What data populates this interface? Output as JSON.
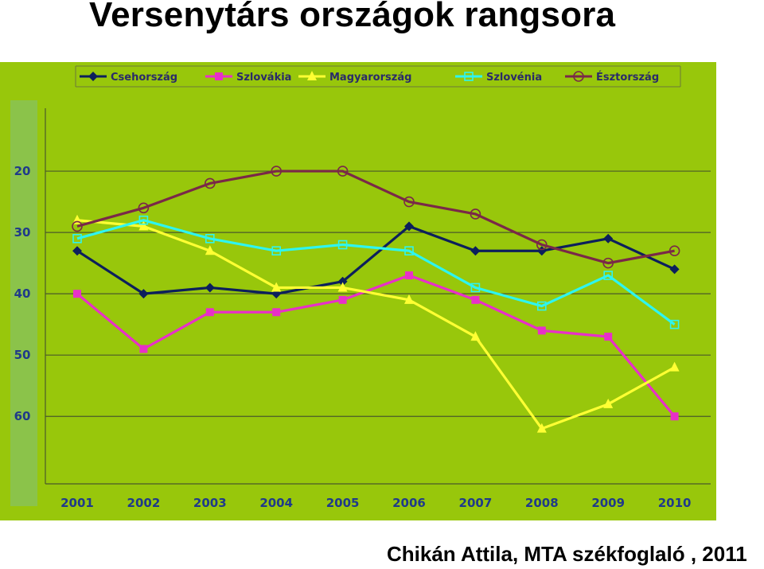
{
  "page": {
    "title": "Versenytárs országok rangsora",
    "credit": "Chikán Attila, MTA székfoglaló , 2011"
  },
  "colors": {
    "plot_background": "#98c70b",
    "gridline": "#4a5a2a",
    "axis_strip": "#8bc34a"
  },
  "chart_data": {
    "type": "line",
    "title": "",
    "xlabel": "",
    "ylabel": "",
    "y_reversed": true,
    "ylim": [
      10,
      71
    ],
    "yticks": [
      20,
      30,
      40,
      50,
      60
    ],
    "grid": true,
    "legend_position": "top",
    "categories": [
      "2001",
      "2002",
      "2003",
      "2004",
      "2005",
      "2006",
      "2007",
      "2008",
      "2009",
      "2010"
    ],
    "series": [
      {
        "name": "Csehország",
        "color": "#0c1f5c",
        "marker": "diamond",
        "values": [
          33,
          40,
          39,
          40,
          38,
          29,
          33,
          33,
          31,
          36
        ]
      },
      {
        "name": "Szlovákia",
        "color": "#e830c8",
        "marker": "square",
        "values": [
          40,
          49,
          43,
          43,
          41,
          37,
          41,
          46,
          47,
          60
        ]
      },
      {
        "name": "Magyarország",
        "color": "#ffff33",
        "marker": "triangle",
        "values": [
          28,
          29,
          33,
          39,
          39,
          41,
          47,
          62,
          58,
          52
        ]
      },
      {
        "name": "Szlovénia",
        "color": "#2ef5f0",
        "marker": "open-square",
        "values": [
          31,
          28,
          31,
          33,
          32,
          33,
          39,
          42,
          37,
          45
        ]
      },
      {
        "name": "Észtország",
        "color": "#7a2848",
        "marker": "open-circle",
        "values": [
          29,
          26,
          22,
          20,
          20,
          25,
          27,
          32,
          35,
          33
        ]
      }
    ]
  }
}
